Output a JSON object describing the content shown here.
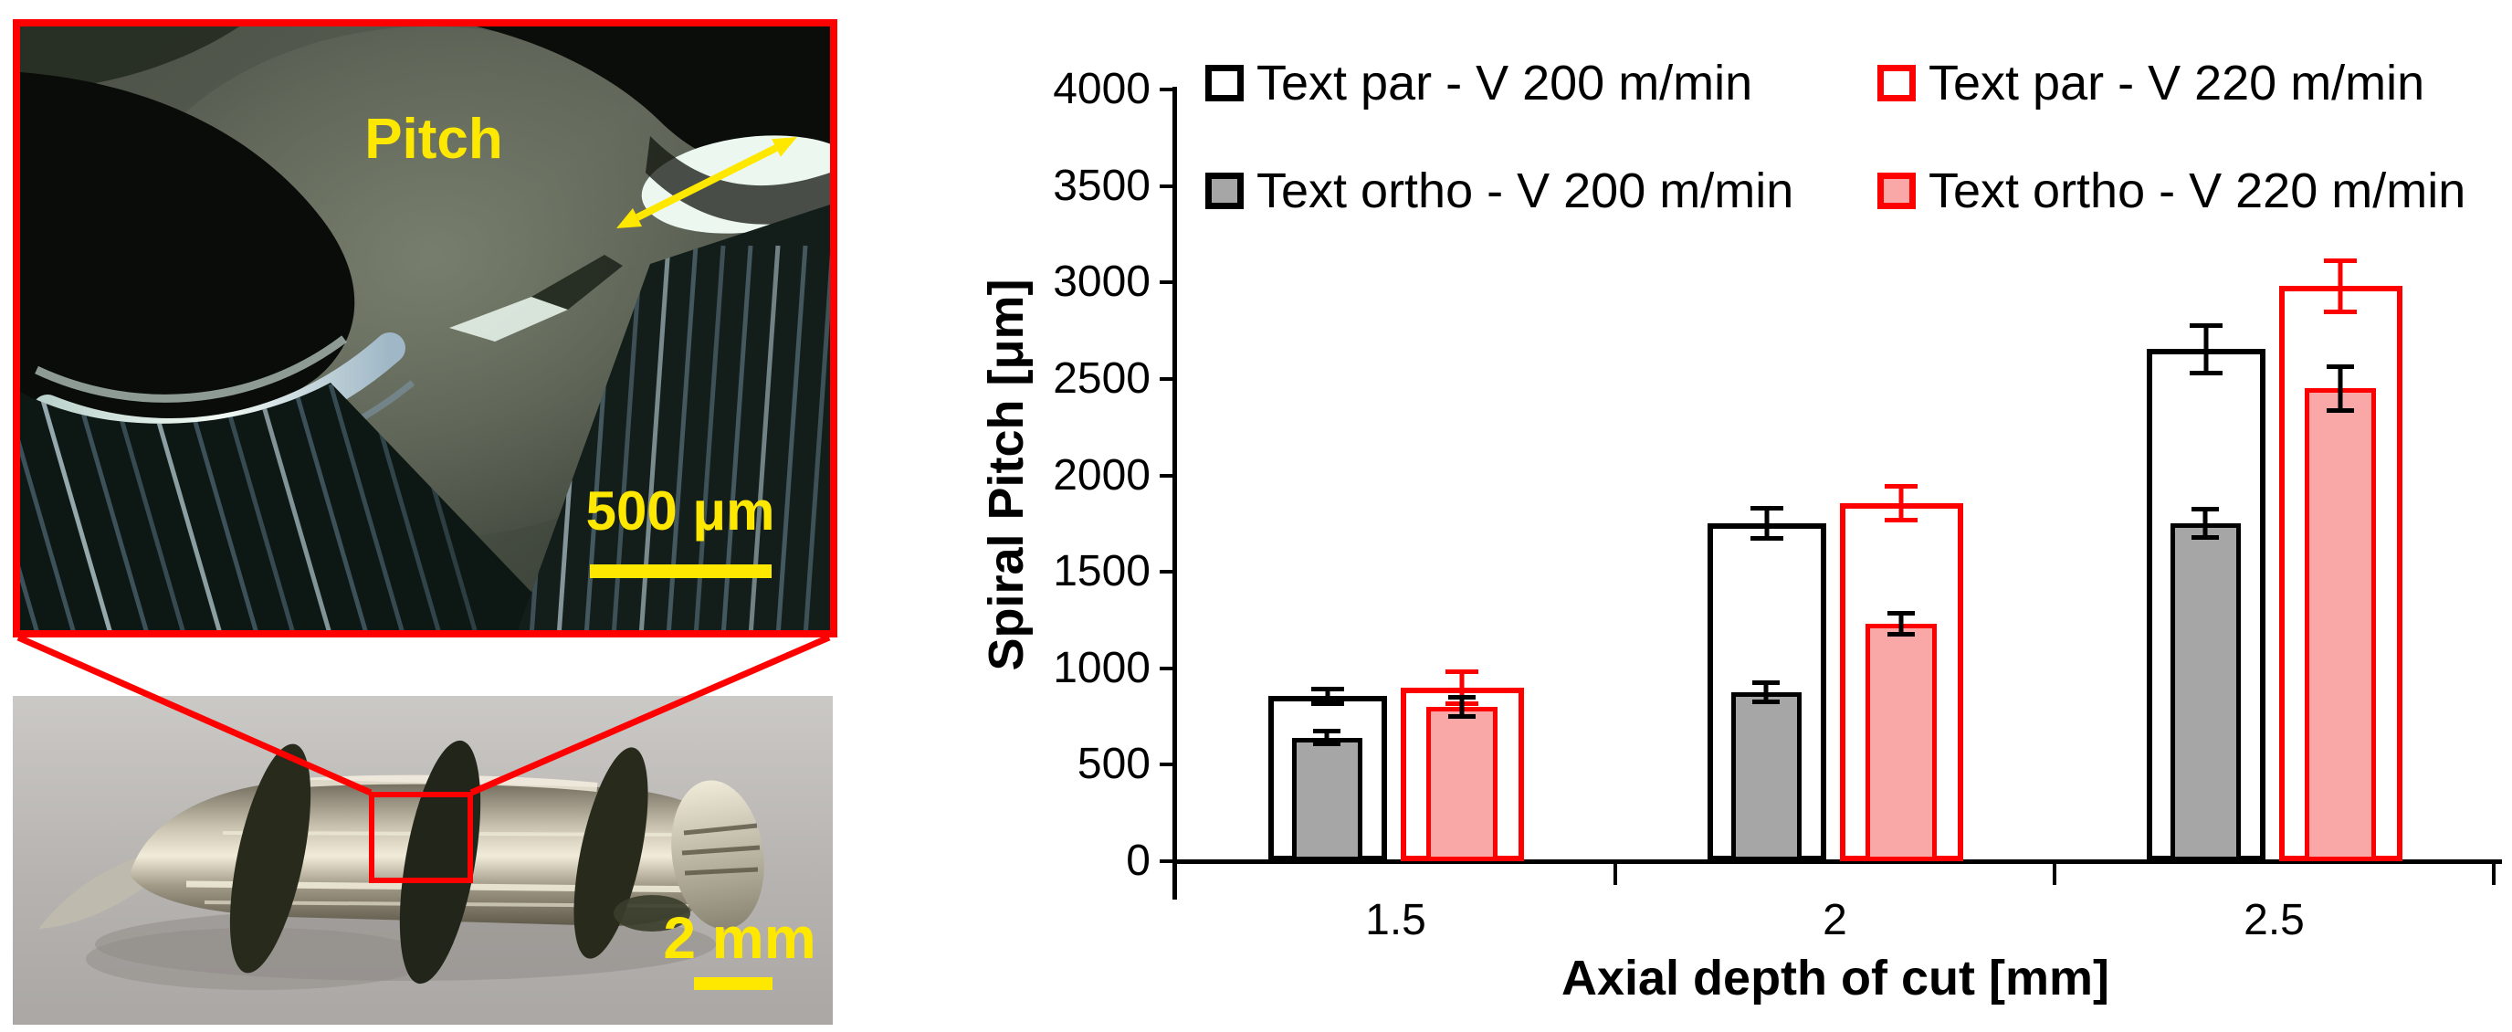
{
  "figure": {
    "micrograph": {
      "pitch_label": "Pitch",
      "scale_label": "500 μm"
    },
    "chip_photo": {
      "scale_label": "2 mm"
    }
  },
  "chart_data": {
    "type": "bar",
    "title": "",
    "xlabel": "Axial depth of cut [mm]",
    "ylabel": "Spiral Pitch [μm]",
    "categories": [
      "1.5",
      "2",
      "2.5"
    ],
    "series": [
      {
        "name": "Text par - V 200 m/min",
        "style": "outline-black",
        "values": [
          855,
          1750,
          2655
        ],
        "errors": [
          50,
          90,
          135
        ]
      },
      {
        "name": "Text ortho - V 200 m/min",
        "style": "fill-gray",
        "values": [
          640,
          875,
          1750
        ],
        "errors": [
          45,
          60,
          85
        ]
      },
      {
        "name": "Text par - V 220 m/min",
        "style": "outline-red",
        "values": [
          900,
          1855,
          2980
        ],
        "errors": [
          95,
          100,
          145
        ]
      },
      {
        "name": "Text ortho - V 220 m/min",
        "style": "fill-pink",
        "values": [
          800,
          1230,
          2450
        ],
        "errors": [
          60,
          65,
          125
        ]
      }
    ],
    "ylim": [
      0,
      4000
    ],
    "ytick_step": 500,
    "grid": false,
    "legend_position": "top",
    "colors": {
      "accent_red": "#FF0000",
      "bar_pink": "#F9A7A7",
      "bar_gray": "#A6A6A6",
      "bar_outline": "#000000",
      "annotation_yellow": "#FFE800"
    }
  }
}
